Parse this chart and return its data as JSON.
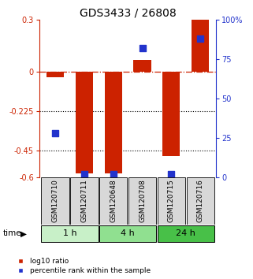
{
  "title": "GDS3433 / 26808",
  "samples": [
    "GSM120710",
    "GSM120711",
    "GSM120648",
    "GSM120708",
    "GSM120715",
    "GSM120716"
  ],
  "groups": [
    {
      "label": "1 h",
      "indices": [
        0,
        1
      ],
      "color": "#c8f0c8"
    },
    {
      "label": "4 h",
      "indices": [
        2,
        3
      ],
      "color": "#90e090"
    },
    {
      "label": "24 h",
      "indices": [
        4,
        5
      ],
      "color": "#48c048"
    }
  ],
  "log10_ratio": [
    -0.03,
    -0.58,
    -0.58,
    0.07,
    -0.48,
    0.3
  ],
  "percentile_rank": [
    28,
    2,
    2,
    82,
    2,
    88
  ],
  "ylim_left": [
    -0.6,
    0.3
  ],
  "ylim_right": [
    0,
    100
  ],
  "yticks_left": [
    0.3,
    0,
    -0.225,
    -0.45,
    -0.6
  ],
  "yticks_right": [
    100,
    75,
    50,
    25,
    0
  ],
  "ytick_labels_left": [
    "0.3",
    "0",
    "-0.225",
    "-0.45",
    "-0.6"
  ],
  "ytick_labels_right": [
    "100%",
    "75",
    "50",
    "25",
    "0"
  ],
  "hlines_dotted": [
    -0.225,
    -0.45
  ],
  "hline_dashdot": 0.0,
  "bar_color": "#cc2200",
  "dot_color": "#2233cc",
  "bar_width": 0.6,
  "dot_size": 40,
  "time_label": "time",
  "legend_bar": "log10 ratio",
  "legend_dot": "percentile rank within the sample",
  "title_fontsize": 10,
  "tick_fontsize": 7,
  "sample_fontsize": 6.5,
  "group_fontsize": 8,
  "time_fontsize": 7.5
}
